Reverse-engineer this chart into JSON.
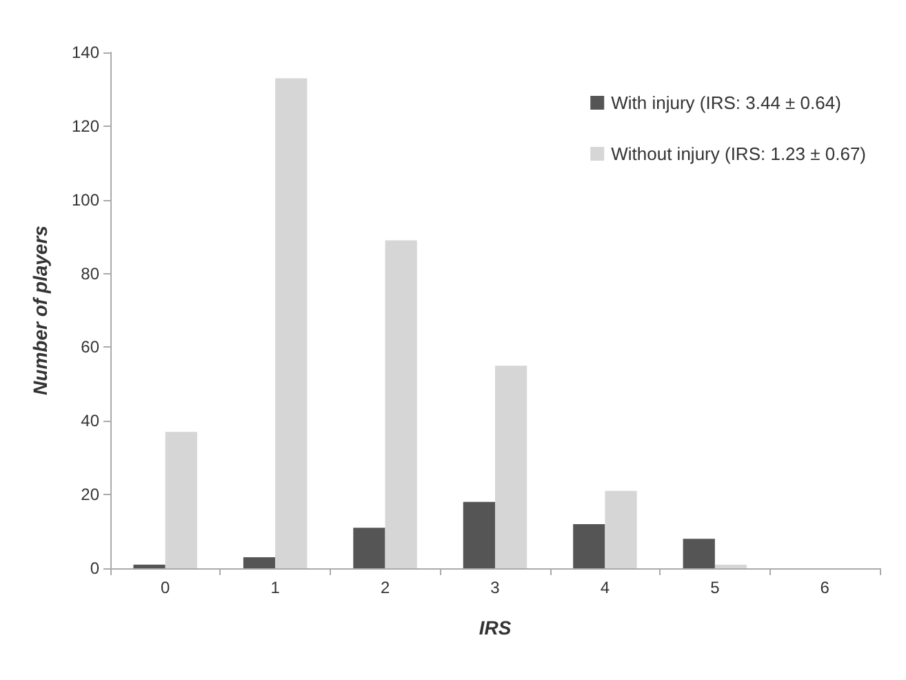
{
  "chart_data": {
    "type": "bar",
    "xlabel": "IRS",
    "ylabel": "Number of players",
    "categories": [
      "0",
      "1",
      "2",
      "3",
      "4",
      "5",
      "6"
    ],
    "series": [
      {
        "name": "With injury (IRS: 3.44 ± 0.64)",
        "color": "#555555",
        "values": [
          1,
          3,
          11,
          18,
          12,
          8,
          0
        ]
      },
      {
        "name": "Without injury (IRS: 1.23 ± 0.67)",
        "color": "#d6d6d6",
        "values": [
          37,
          133,
          89,
          55,
          21,
          1,
          0
        ]
      }
    ],
    "ylim": [
      0,
      140
    ],
    "yticks": [
      0,
      20,
      40,
      60,
      80,
      100,
      120,
      140
    ],
    "grid": false,
    "legend": "top right"
  }
}
